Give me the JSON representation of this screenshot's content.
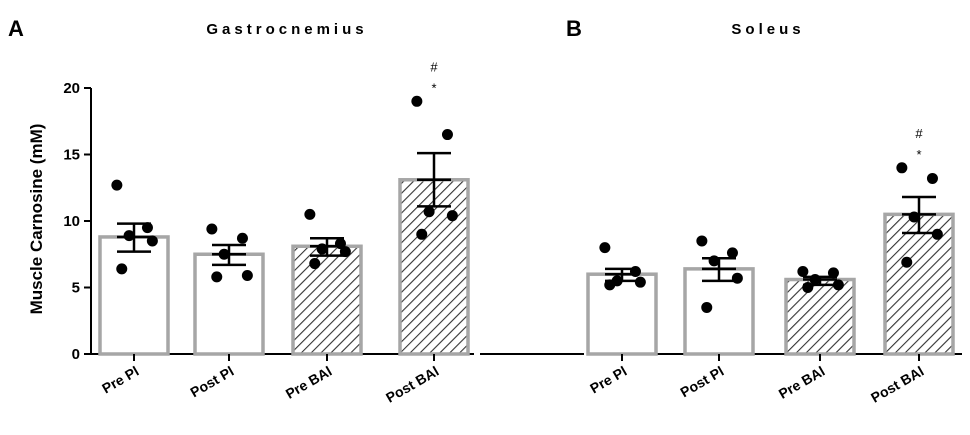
{
  "chart_data": {
    "type": "bar",
    "ylabel": "Muscle Carnosine (mM)",
    "ylim": [
      0,
      20
    ],
    "yticks": [
      0,
      5,
      10,
      15,
      20
    ],
    "categories": [
      "Pre Pl",
      "Post Pl",
      "Pre BAl",
      "Post BAl"
    ],
    "panels": [
      {
        "letter": "A",
        "title": "Gastrocnemius",
        "bars": [
          {
            "category": "Pre Pl",
            "mean": 8.8,
            "sem_low": 7.7,
            "sem_high": 9.8,
            "points": [
              12.7,
              9.5,
              8.9,
              8.5,
              6.4
            ],
            "hatched": false,
            "annotations": []
          },
          {
            "category": "Post Pl",
            "mean": 7.5,
            "sem_low": 6.7,
            "sem_high": 8.2,
            "points": [
              9.4,
              8.7,
              7.5,
              5.9,
              5.8
            ],
            "hatched": false,
            "annotations": []
          },
          {
            "category": "Pre BAl",
            "mean": 8.1,
            "sem_low": 7.4,
            "sem_high": 8.7,
            "points": [
              10.5,
              8.3,
              7.9,
              7.7,
              6.8
            ],
            "hatched": true,
            "annotations": []
          },
          {
            "category": "Post BAl",
            "mean": 13.1,
            "sem_low": 11.1,
            "sem_high": 15.1,
            "points": [
              19.0,
              16.5,
              10.7,
              10.4,
              9.0
            ],
            "hatched": true,
            "annotations": [
              "#",
              "*"
            ]
          }
        ]
      },
      {
        "letter": "B",
        "title": "Soleus",
        "bars": [
          {
            "category": "Pre Pl",
            "mean": 6.0,
            "sem_low": 5.5,
            "sem_high": 6.4,
            "points": [
              8.0,
              6.2,
              5.5,
              5.4,
              5.2
            ],
            "hatched": false,
            "annotations": []
          },
          {
            "category": "Post Pl",
            "mean": 6.4,
            "sem_low": 5.5,
            "sem_high": 7.2,
            "points": [
              8.5,
              7.6,
              7.0,
              5.7,
              3.5
            ],
            "hatched": false,
            "annotations": []
          },
          {
            "category": "Pre BAl",
            "mean": 5.6,
            "sem_low": 5.2,
            "sem_high": 5.8,
            "points": [
              6.2,
              6.1,
              5.6,
              5.2,
              5.0
            ],
            "hatched": true,
            "annotations": []
          },
          {
            "category": "Post BAl",
            "mean": 10.5,
            "sem_low": 9.1,
            "sem_high": 11.8,
            "points": [
              14.0,
              13.2,
              10.3,
              9.0,
              6.9
            ],
            "hatched": true,
            "annotations": [
              "#",
              "*"
            ]
          }
        ]
      }
    ],
    "colors": {
      "axis": "#000000",
      "bar_stroke": "#a6a6a6",
      "bar_fill": "#ffffff",
      "hatch": "#333333",
      "point": "#000000",
      "error_bar": "#000000"
    }
  }
}
